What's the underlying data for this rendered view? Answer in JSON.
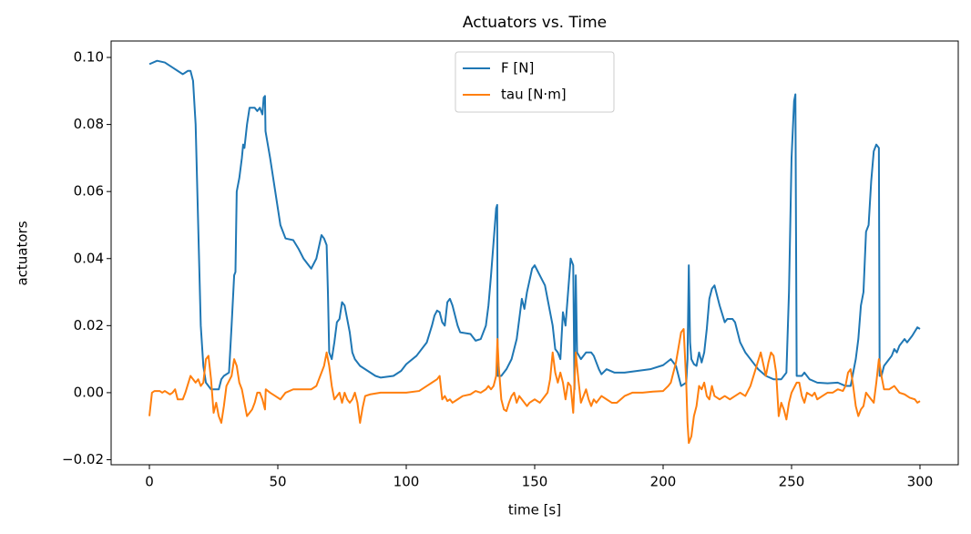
{
  "chart_data": {
    "type": "line",
    "title": "Actuators vs. Time",
    "x_label": "time [s]",
    "y_label": "actuators",
    "xlim": [
      -14.9,
      314.9
    ],
    "ylim": [
      -0.0215,
      0.1049
    ],
    "xticks": [
      0,
      50,
      100,
      150,
      200,
      250,
      300
    ],
    "yticks": [
      {
        "value": -0.02,
        "label": "−0.02"
      },
      {
        "value": 0,
        "label": "0.00"
      },
      {
        "value": 0.02,
        "label": "0.02"
      },
      {
        "value": 0.04,
        "label": "0.04"
      },
      {
        "value": 0.06,
        "label": "0.06"
      },
      {
        "value": 0.08,
        "label": "0.08"
      },
      {
        "value": 0.1,
        "label": "0.10"
      }
    ],
    "legend": "upper center",
    "grid": false,
    "series": [
      {
        "name": "F [N]",
        "color": "#1f77b4",
        "x": [
          0,
          3,
          6,
          9,
          11,
          13,
          15,
          16,
          17,
          18,
          19,
          20,
          21,
          22,
          24,
          27,
          28,
          29,
          31,
          32,
          33,
          33.5,
          34,
          35,
          36,
          36.5,
          37,
          38,
          39,
          41,
          42,
          43,
          44,
          44.5,
          45,
          45.2,
          47,
          49,
          51,
          53,
          56,
          58,
          60,
          62,
          63,
          65,
          67,
          68,
          69,
          69.5,
          70,
          71,
          72,
          73,
          74,
          75,
          76,
          77,
          78,
          79,
          80,
          82,
          85,
          88,
          90,
          95,
          98,
          100,
          104,
          108,
          110,
          111,
          112,
          113,
          114,
          115,
          116,
          117,
          118,
          120,
          121,
          125,
          127,
          129,
          131,
          132,
          133,
          134,
          135,
          135.4,
          135.6,
          137,
          139,
          141,
          143,
          144,
          145,
          146,
          147,
          149,
          150,
          152,
          154,
          155,
          157,
          158,
          159,
          160,
          161,
          162,
          163,
          164,
          165,
          165.5,
          166,
          166.5,
          168,
          170,
          172,
          173,
          175,
          176,
          178,
          181,
          185,
          190,
          195,
          200,
          203,
          205,
          207,
          209,
          209.5,
          210,
          210.5,
          211,
          212,
          213,
          214,
          215,
          216,
          217,
          218,
          219,
          220,
          221,
          222,
          224,
          225,
          227,
          228,
          230,
          232,
          235,
          237,
          240,
          243,
          246,
          248,
          249,
          250,
          251,
          251.5,
          252,
          254,
          255,
          257,
          260,
          264,
          268,
          271,
          273,
          274,
          275,
          276,
          277,
          278,
          279,
          280,
          281,
          282,
          283,
          284,
          284.3,
          285,
          286,
          288,
          289,
          290,
          291,
          292,
          294,
          295,
          297,
          299,
          300
        ],
        "values": [
          0.098,
          0.099,
          0.0985,
          0.097,
          0.096,
          0.095,
          0.096,
          0.096,
          0.093,
          0.08,
          0.05,
          0.02,
          0.008,
          0.003,
          0.001,
          0.001,
          0.004,
          0.005,
          0.006,
          0.02,
          0.035,
          0.036,
          0.06,
          0.064,
          0.07,
          0.074,
          0.073,
          0.08,
          0.085,
          0.085,
          0.084,
          0.085,
          0.083,
          0.088,
          0.0885,
          0.078,
          0.07,
          0.06,
          0.05,
          0.046,
          0.0455,
          0.043,
          0.04,
          0.038,
          0.037,
          0.04,
          0.047,
          0.046,
          0.044,
          0.03,
          0.012,
          0.01,
          0.015,
          0.021,
          0.022,
          0.027,
          0.026,
          0.022,
          0.018,
          0.012,
          0.01,
          0.008,
          0.0065,
          0.005,
          0.0045,
          0.005,
          0.0065,
          0.0085,
          0.011,
          0.015,
          0.02,
          0.023,
          0.0245,
          0.024,
          0.021,
          0.02,
          0.027,
          0.028,
          0.026,
          0.02,
          0.018,
          0.0175,
          0.0155,
          0.016,
          0.02,
          0.026,
          0.035,
          0.045,
          0.055,
          0.056,
          0.005,
          0.005,
          0.007,
          0.01,
          0.016,
          0.022,
          0.028,
          0.025,
          0.03,
          0.037,
          0.038,
          0.035,
          0.032,
          0.028,
          0.02,
          0.013,
          0.012,
          0.01,
          0.024,
          0.02,
          0.03,
          0.04,
          0.038,
          0.001,
          0.035,
          0.012,
          0.01,
          0.012,
          0.012,
          0.011,
          0.007,
          0.0055,
          0.007,
          0.006,
          0.006,
          0.0065,
          0.007,
          0.0082,
          0.01,
          0.008,
          0.002,
          0.003,
          0.01,
          0.038,
          0.015,
          0.01,
          0.0085,
          0.008,
          0.012,
          0.009,
          0.012,
          0.019,
          0.028,
          0.031,
          0.032,
          0.029,
          0.026,
          0.021,
          0.022,
          0.022,
          0.021,
          0.015,
          0.012,
          0.009,
          0.007,
          0.005,
          0.004,
          0.004,
          0.006,
          0.03,
          0.07,
          0.087,
          0.089,
          0.005,
          0.005,
          0.006,
          0.004,
          0.003,
          0.0028,
          0.003,
          0.002,
          0.002,
          0.006,
          0.01,
          0.016,
          0.026,
          0.03,
          0.048,
          0.05,
          0.063,
          0.072,
          0.074,
          0.073,
          0.005,
          0.005,
          0.008,
          0.01,
          0.011,
          0.013,
          0.012,
          0.014,
          0.016,
          0.015,
          0.017,
          0.0195,
          0.019
        ]
      },
      {
        "name": "tau [N·m]",
        "color": "#ff7f0e",
        "x": [
          0,
          1,
          2,
          4,
          5,
          6,
          8,
          9,
          10,
          11,
          13,
          14,
          16,
          18,
          19,
          20,
          21,
          22,
          23,
          24,
          25,
          26,
          27,
          28,
          29,
          30,
          32,
          33,
          34,
          35,
          36,
          37,
          38,
          39,
          40,
          41,
          42,
          43,
          44,
          45,
          45.3,
          47,
          49,
          51,
          53,
          56,
          60,
          63,
          65,
          67,
          68,
          69,
          70,
          71,
          72,
          73,
          74,
          75,
          76,
          77,
          78,
          79,
          80,
          81,
          82,
          83,
          84,
          86,
          90,
          95,
          100,
          105,
          108,
          110,
          112,
          113,
          114,
          115,
          116,
          117,
          118,
          120,
          122,
          125,
          127,
          129,
          131,
          132,
          133,
          134,
          135,
          135.5,
          136,
          137,
          138,
          139,
          140,
          141,
          142,
          143,
          144,
          145,
          147,
          148,
          150,
          152,
          154,
          155,
          156,
          157,
          158,
          159,
          160,
          161,
          162,
          163,
          164,
          165,
          166,
          167,
          168,
          169,
          170,
          171,
          172,
          173,
          174,
          176,
          178,
          180,
          182,
          185,
          188,
          192,
          196,
          200,
          202,
          203,
          205,
          207,
          208,
          209,
          209.5,
          210,
          211,
          212,
          213,
          214,
          215,
          216,
          217,
          218,
          219,
          220,
          222,
          224,
          226,
          228,
          230,
          232,
          234,
          236,
          238,
          240,
          241,
          242,
          243,
          244,
          245,
          246,
          247,
          248,
          249,
          250,
          252,
          253,
          254,
          255,
          256,
          258,
          259,
          260,
          262,
          264,
          266,
          268,
          270,
          271,
          272,
          273,
          274,
          275,
          276,
          277,
          278,
          279,
          280,
          281,
          282,
          283,
          284,
          285,
          286,
          288,
          290,
          292,
          294,
          296,
          298,
          299,
          300
        ],
        "values": [
          -0.007,
          0,
          0.0005,
          0.0005,
          0,
          0.0005,
          -0.0005,
          0,
          0.001,
          -0.002,
          -0.002,
          0,
          0.005,
          0.003,
          0.004,
          0.002,
          0.003,
          0.01,
          0.011,
          0.004,
          -0.006,
          -0.003,
          -0.007,
          -0.009,
          -0.004,
          0.002,
          0.005,
          0.01,
          0.008,
          0.003,
          0.001,
          -0.003,
          -0.007,
          -0.006,
          -0.005,
          -0.003,
          0,
          0,
          -0.002,
          -0.005,
          0.001,
          0,
          -0.001,
          -0.002,
          0,
          0.001,
          0.001,
          0.001,
          0.002,
          0.006,
          0.008,
          0.012,
          0.008,
          0.002,
          -0.002,
          -0.001,
          0,
          -0.003,
          0,
          -0.002,
          -0.003,
          -0.002,
          0,
          -0.003,
          -0.009,
          -0.0045,
          -0.001,
          -0.0005,
          0,
          0,
          0,
          0.0005,
          0.002,
          0.003,
          0.004,
          0.005,
          -0.002,
          -0.001,
          -0.0025,
          -0.002,
          -0.003,
          -0.002,
          -0.001,
          -0.0005,
          0.0005,
          0,
          0.001,
          0.002,
          0.001,
          0.002,
          0.005,
          0.016,
          0.008,
          -0.002,
          -0.005,
          -0.0055,
          -0.003,
          -0.001,
          0,
          -0.003,
          -0.001,
          -0.002,
          -0.004,
          -0.003,
          -0.002,
          -0.003,
          -0.001,
          0,
          0.004,
          0.012,
          0.006,
          0.003,
          0.006,
          0.003,
          -0.002,
          0.003,
          0.002,
          -0.006,
          0.012,
          0.004,
          -0.003,
          -0.001,
          0.001,
          -0.002,
          -0.004,
          -0.002,
          -0.003,
          -0.001,
          -0.002,
          -0.003,
          -0.003,
          -0.001,
          0,
          0,
          0.0003,
          0.0005,
          0.002,
          0.003,
          0.009,
          0.018,
          0.019,
          0.003,
          -0.009,
          -0.015,
          -0.013,
          -0.007,
          -0.004,
          0.002,
          0.001,
          0.003,
          -0.001,
          -0.002,
          0.002,
          -0.001,
          -0.002,
          -0.001,
          -0.002,
          -0.001,
          0,
          -0.001,
          0.002,
          0.007,
          0.012,
          0.005,
          0.009,
          0.012,
          0.011,
          0.006,
          -0.007,
          -0.003,
          -0.005,
          -0.008,
          -0.003,
          0,
          0.003,
          0.003,
          -0.001,
          -0.003,
          0,
          -0.001,
          0,
          -0.002,
          -0.001,
          0,
          0,
          0.001,
          0.0005,
          0.002,
          0.006,
          0.007,
          0.002,
          -0.004,
          -0.007,
          -0.005,
          -0.004,
          0,
          -0.001,
          -0.002,
          -0.003,
          0.003,
          0.01,
          0.005,
          0.001,
          0.001,
          0.002,
          0,
          -0.0005,
          -0.0015,
          -0.002,
          -0.003,
          -0.0025
        ]
      }
    ]
  }
}
